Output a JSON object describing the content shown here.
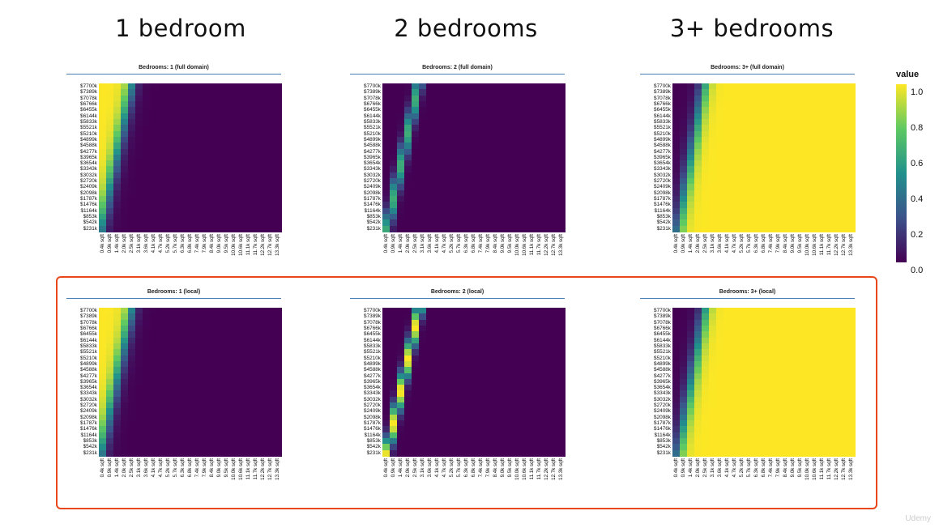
{
  "column_titles": [
    "1 bedroom",
    "2 bedrooms",
    "3+ bedrooms"
  ],
  "legend": {
    "title": "value",
    "ticks": [
      "1.0",
      "0.8",
      "0.6",
      "0.4",
      "0.2",
      "0.0"
    ],
    "colormap": [
      "#440154",
      "#3b528b",
      "#21918c",
      "#5ec962",
      "#fde725"
    ]
  },
  "highlight_color": "#e8471c",
  "watermark": "Udemy",
  "y_ticks": [
    "$7700k",
    "$7389k",
    "$7078k",
    "$6766k",
    "$6455k",
    "$6144k",
    "$5833k",
    "$5521k",
    "$5210k",
    "$4899k",
    "$4588k",
    "$4277k",
    "$3965k",
    "$3654k",
    "$3343k",
    "$3032k",
    "$2720k",
    "$2409k",
    "$2098k",
    "$1787k",
    "$1476k",
    "$1164k",
    "$853k",
    "$542k",
    "$231k"
  ],
  "x_ticks": [
    "0.4k sqft",
    "0.9k sqft",
    "1.4k sqft",
    "2.0k sqft",
    "2.5k sqft",
    "3.1k sqft",
    "3.6k sqft",
    "4.1k sqft",
    "4.7k sqft",
    "5.2k sqft",
    "5.7k sqft",
    "6.3k sqft",
    "6.8k sqft",
    "7.4k sqft",
    "7.9k sqft",
    "8.4k sqft",
    "9.0k sqft",
    "9.5k sqft",
    "10.0k sqft",
    "10.6k sqft",
    "11.1k sqft",
    "11.7k sqft",
    "12.2k sqft",
    "12.7k sqft",
    "13.3k sqft"
  ],
  "chart_data": [
    {
      "type": "heatmap",
      "title": "Bedrooms: 1 (full domain)",
      "pattern": "left",
      "boundary_at_top": 4.4,
      "boundary_at_bottom": 0.3,
      "width": 0.5
    },
    {
      "type": "heatmap",
      "title": "Bedrooms: 2 (full domain)",
      "pattern": "band",
      "boundary_at_top": 4.9,
      "boundary_at_bottom": 0.6,
      "width": 0.45,
      "peak": 0.62
    },
    {
      "type": "heatmap",
      "title": "Bedrooms: 3+ (full domain)",
      "pattern": "right",
      "boundary_at_top": 4.3,
      "boundary_at_bottom": 0.8,
      "width": 0.5
    },
    {
      "type": "heatmap",
      "title": "Bedrooms: 1 (local)",
      "pattern": "left",
      "boundary_at_top": 4.4,
      "boundary_at_bottom": 0.3,
      "width": 0.5
    },
    {
      "type": "heatmap",
      "title": "Bedrooms: 2 (local)",
      "pattern": "band",
      "boundary_at_top": 5.0,
      "boundary_at_bottom": 0.6,
      "width": 0.4,
      "peak": 1.0
    },
    {
      "type": "heatmap",
      "title": "Bedrooms: 3+ (local)",
      "pattern": "right",
      "boundary_at_top": 4.4,
      "boundary_at_bottom": 0.8,
      "width": 0.5
    }
  ]
}
